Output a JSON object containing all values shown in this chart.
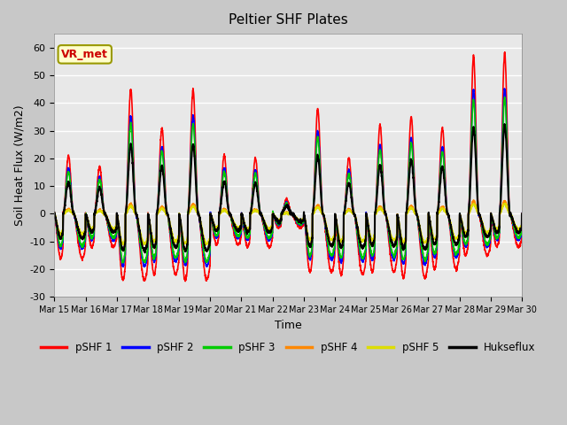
{
  "title": "Peltier SHF Plates",
  "xlabel": "Time",
  "ylabel": "Soil Heat Flux (W/m2)",
  "ylim": [
    -30,
    65
  ],
  "yticks": [
    -30,
    -20,
    -10,
    0,
    10,
    20,
    30,
    40,
    50,
    60
  ],
  "xtick_labels": [
    "Mar 15",
    "Mar 16",
    "Mar 17",
    "Mar 18",
    "Mar 19",
    "Mar 20",
    "Mar 21",
    "Mar 22",
    "Mar 23",
    "Mar 24",
    "Mar 25",
    "Mar 26",
    "Mar 27",
    "Mar 28",
    "Mar 29",
    "Mar 30"
  ],
  "annotation_text": "VR_met",
  "annotation_bg": "#ffffcc",
  "annotation_border": "#999900",
  "annotation_color": "#cc0000",
  "line_colors": [
    "#ff0000",
    "#0000ff",
    "#00cc00",
    "#ff8800",
    "#dddd00",
    "#000000"
  ],
  "line_labels": [
    "pSHF 1",
    "pSHF 2",
    "pSHF 3",
    "pSHF 4",
    "pSHF 5",
    "Hukseflux"
  ],
  "fig_bg": "#c8c8c8",
  "plot_bg": "#e8e8e8",
  "figsize": [
    6.4,
    4.8
  ],
  "dpi": 100
}
